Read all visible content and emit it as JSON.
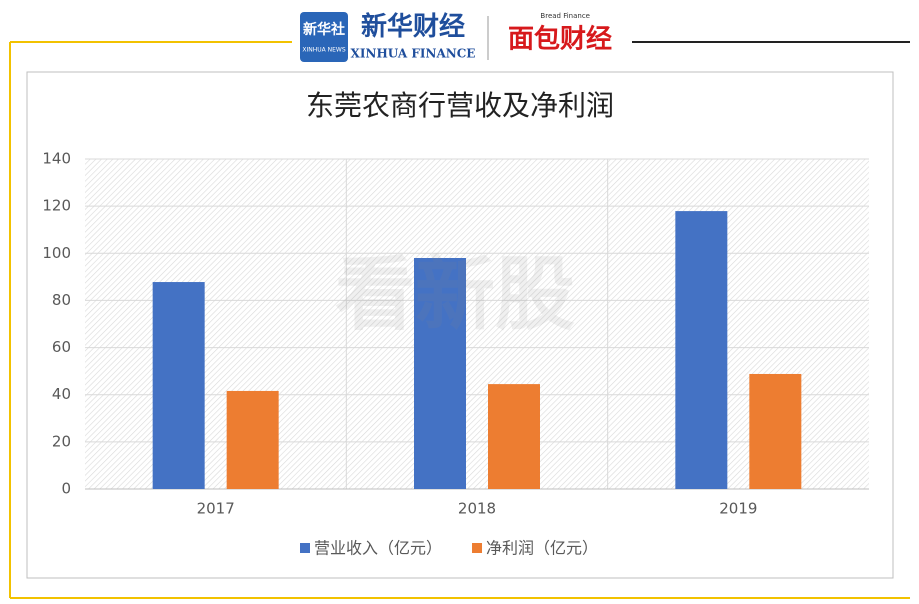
{
  "header": {
    "logo1": "新华社",
    "logo1_sub": "XINHUA NEWS",
    "logo2": "新华财经",
    "logo2_sub": "XINHUA FINANCE",
    "logo3": "面包财经",
    "logo3_sub": "Bread Finance",
    "watermark": "看新股"
  },
  "chart_data": {
    "type": "bar",
    "title": "东莞农商行营收及净利润",
    "categories": [
      "2017",
      "2018",
      "2019"
    ],
    "series": [
      {
        "name": "营业收入（亿元）",
        "color": "#4472c4",
        "values": [
          87.8,
          98,
          117.9
        ]
      },
      {
        "name": "净利润（亿元）",
        "color": "#ed7d31",
        "values": [
          41.6,
          44.5,
          48.8
        ]
      }
    ],
    "ylim": [
      0,
      140
    ],
    "yticks": [
      0,
      20,
      40,
      60,
      80,
      100,
      120,
      140
    ],
    "grid": true,
    "legend": "bottom"
  }
}
